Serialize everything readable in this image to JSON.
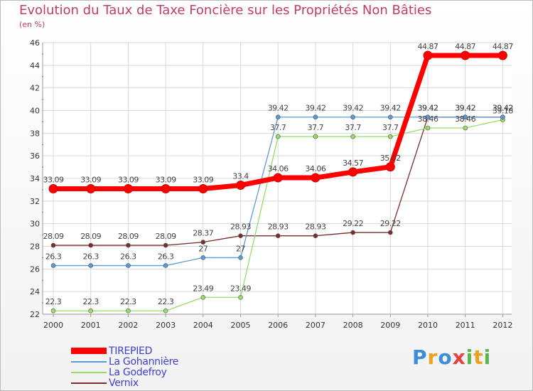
{
  "header": {
    "title": "Evolution du Taux de Taxe Foncière sur les Propriétés Non Bâties",
    "unit": "(en %)"
  },
  "logo": {
    "text": "Proxiti",
    "letters": [
      "P",
      "r",
      "o",
      "x",
      "i",
      "t",
      "i"
    ]
  },
  "chart_data": {
    "type": "line",
    "title": "Evolution du Taux de Taxe Foncière sur les Propriétés Non Bâties",
    "ylabel": "(en %)",
    "xlabel": "",
    "ylim": [
      22,
      46
    ],
    "yticks": [
      22,
      24,
      26,
      28,
      30,
      32,
      34,
      36,
      38,
      40,
      42,
      44,
      46
    ],
    "categories": [
      "2000",
      "2001",
      "2002",
      "2003",
      "2004",
      "2005",
      "2006",
      "2007",
      "2008",
      "2009",
      "2010",
      "2011",
      "2012"
    ],
    "legend_position": "bottom-left",
    "series": [
      {
        "name": "TIREPIED",
        "color": "#ff0000",
        "labels": [
          "33.09",
          "33.09",
          "33.09",
          "33.09",
          "33.09",
          "33.4",
          "34.06",
          "34.06",
          "34.57",
          "35.02",
          "44.87",
          "44.87",
          "44.87"
        ],
        "values": [
          33.09,
          33.09,
          33.09,
          33.09,
          33.09,
          33.4,
          34.06,
          34.06,
          34.57,
          35.02,
          44.87,
          44.87,
          44.87
        ]
      },
      {
        "name": "La Gohannière",
        "color": "#5b9bd5",
        "labels": [
          "26.3",
          "26.3",
          "26.3",
          "26.3",
          "27",
          "27",
          "39.42",
          "39.42",
          "39.42",
          "39.42",
          "39.42",
          "39.42",
          "39.42"
        ],
        "values": [
          26.3,
          26.3,
          26.3,
          26.3,
          27,
          27,
          39.42,
          39.42,
          39.42,
          39.42,
          39.42,
          39.42,
          39.42
        ]
      },
      {
        "name": "La Godefroy",
        "color": "#99dd66",
        "labels": [
          "22.3",
          "22.3",
          "22.3",
          "22.3",
          "23.49",
          "23.49",
          "37.7",
          "37.7",
          "37.7",
          "37.7",
          "38.46",
          "38.46",
          "39.18"
        ],
        "values": [
          22.3,
          22.3,
          22.3,
          22.3,
          23.49,
          23.49,
          37.7,
          37.7,
          37.7,
          37.7,
          38.46,
          38.46,
          39.18
        ]
      },
      {
        "name": "Vernix",
        "color": "#7b2d2d",
        "labels": [
          "28.09",
          "28.09",
          "28.09",
          "28.09",
          "28.37",
          "28.93",
          "28.93",
          "28.93",
          "29.22",
          "29.22",
          "39.42",
          "39.42",
          "39.42"
        ],
        "values": [
          28.09,
          28.09,
          28.09,
          28.09,
          28.37,
          28.93,
          28.93,
          28.93,
          29.22,
          29.22,
          39.42,
          39.42,
          39.42
        ]
      }
    ]
  }
}
